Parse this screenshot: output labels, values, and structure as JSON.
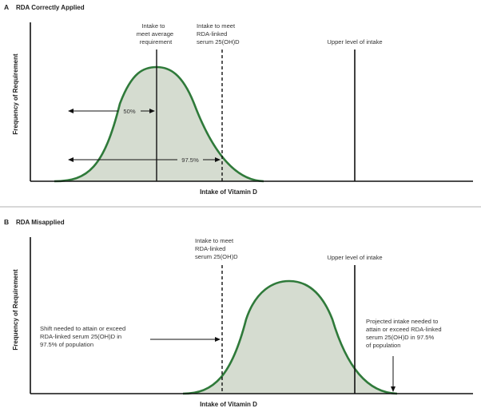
{
  "colors": {
    "curve": "#2f7a3a",
    "fill": "#d5dcd0",
    "axis": "#111111",
    "text": "#333333"
  },
  "panel_a": {
    "letter": "A",
    "title": "RDA Correctly Applied",
    "ylabel": "Frequency of Requirement",
    "xlabel": "Intake of Vitamin D",
    "ear_label": [
      "Intake to",
      "meet average",
      "requirement"
    ],
    "rda_label": [
      "Intake to meet",
      "RDA-linked",
      "serum 25(OH)D"
    ],
    "ul_label": "Upper level of intake",
    "arrow_50": "50%",
    "arrow_975": "97.5%"
  },
  "panel_b": {
    "letter": "B",
    "title": "RDA Misapplied",
    "ylabel": "Frequency of Requirement",
    "xlabel": "Intake of Vitamin D",
    "rda_label": [
      "Intake to meet",
      "RDA-linked",
      "serum 25(OH)D"
    ],
    "ul_label": "Upper level of intake",
    "shift_label": [
      "Shift needed to attain or exceed",
      "RDA-linked serum 25(OH)D in",
      "97.5% of population"
    ],
    "projected_label": [
      "Projected intake needed to",
      "attain or exceed RDA-linked",
      "serum 25(OH)D in 97.5%",
      "of population"
    ]
  }
}
